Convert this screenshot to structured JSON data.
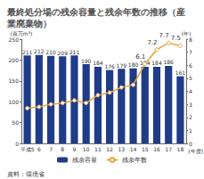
{
  "chart_data": {
    "type": "bar",
    "title": "最終処分場の残余容量と残余年数の推移（産業廃棄物）",
    "categories": [
      "平成5",
      "6",
      "7",
      "8",
      "9",
      "10",
      "11",
      "12",
      "13",
      "14",
      "15",
      "16",
      "17",
      "18"
    ],
    "x_label": "(年度)",
    "y_label": "(百万m³)",
    "y2_label": "(年)",
    "source": "資料：環境省",
    "series": [
      {
        "name": "残余容量",
        "type": "bar",
        "color": "#1f3c88",
        "values": [
          211,
          212,
          210,
          209,
          211,
          190,
          184,
          176,
          179,
          180,
          184,
          184,
          186,
          161
        ],
        "data_labels": true
      },
      {
        "name": "残余年数",
        "type": "line",
        "axis": "y2",
        "color": "#e6a23c",
        "marker": "circle",
        "values": [
          2.7,
          2.8,
          3.0,
          3.1,
          3.3,
          3.1,
          3.7,
          3.9,
          4.3,
          4.5,
          6.1,
          7.2,
          7.7,
          7.5
        ],
        "value_labels": [
          null,
          null,
          null,
          null,
          null,
          null,
          null,
          null,
          null,
          null,
          "6.1",
          "7.2",
          "7.7",
          "7.5"
        ]
      }
    ],
    "ylim": [
      0,
      250
    ],
    "yticks": [
      0,
      50,
      100,
      150,
      200,
      250
    ],
    "y2lim": [
      0,
      8
    ],
    "y2ticks": [
      0,
      1,
      2,
      3,
      4,
      5,
      6,
      7,
      8
    ],
    "legend": "bottom",
    "grid": false
  }
}
